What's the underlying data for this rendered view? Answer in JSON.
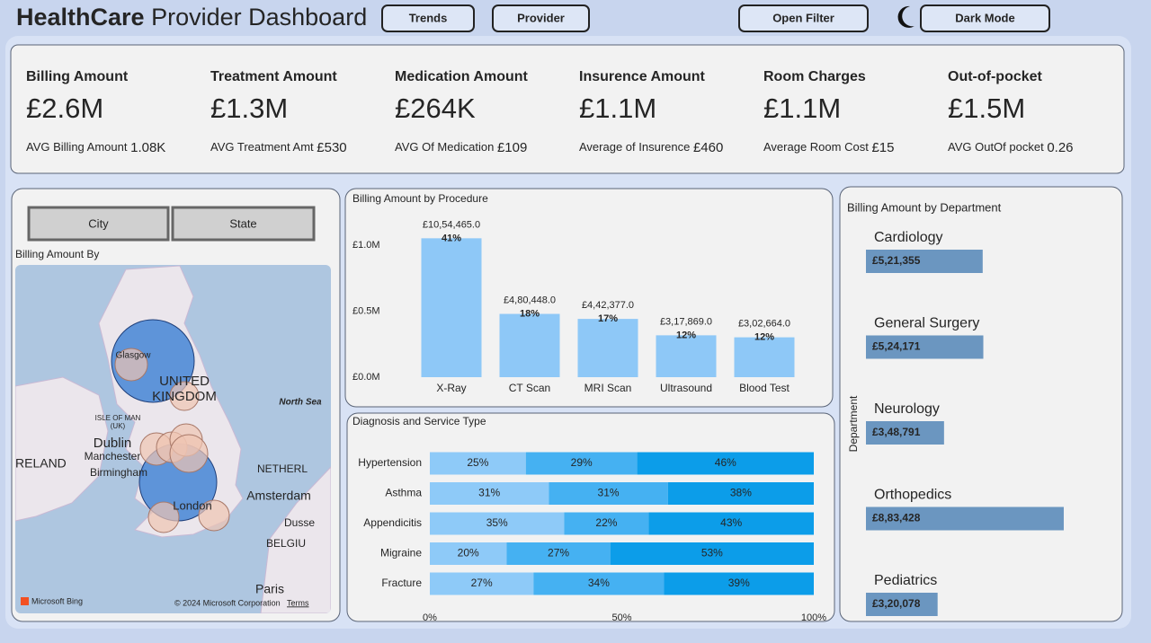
{
  "header": {
    "title_bold": "HealthCare",
    "title_rest": "Provider Dashboard",
    "buttons": [
      "Trends",
      "Provider",
      "Open Filter",
      "Dark Mode"
    ]
  },
  "kpis": [
    {
      "title": "Billing Amount",
      "value": "£2.6M",
      "sub_label": "AVG Billing Amount",
      "sub_value": "1.08K"
    },
    {
      "title": "Treatment Amount",
      "value": "£1.3M",
      "sub_label": "AVG Treatment Amt",
      "sub_value": "£530"
    },
    {
      "title": "Medication Amount",
      "value": "£264K",
      "sub_label": "AVG Of Medication",
      "sub_value": "£109"
    },
    {
      "title": "Insurence Amount",
      "value": "£1.1M",
      "sub_label": "Average of Insurence",
      "sub_value": "£460"
    },
    {
      "title": "Room Charges",
      "value": "£1.1M",
      "sub_label": "Average Room Cost",
      "sub_value": "£15"
    },
    {
      "title": "Out-of-pocket",
      "value": "£1.5M",
      "sub_label": "AVG OutOf pocket",
      "sub_value": "0.26"
    }
  ],
  "map": {
    "buttons": [
      "City",
      "State"
    ],
    "title": "Billing Amount By",
    "labels": [
      "Glasgow",
      "UNITED",
      "KINGDOM",
      "North Sea",
      "ISLE OF MAN",
      "(UK)",
      "Dublin",
      "RELAND",
      "Manchester",
      "Birmingham",
      "London",
      "Amsterdam",
      "NETHERL",
      "Dusse",
      "BELGIU",
      "Paris"
    ],
    "credits": [
      "Microsoft Bing",
      "© 2024 Microsoft Corporation",
      "Terms"
    ]
  },
  "chart_data": [
    {
      "type": "bar",
      "title": "Billing Amount by Procedure",
      "categories": [
        "X-Ray",
        "CT Scan",
        "MRI Scan",
        "Ultrasound",
        "Blood Test"
      ],
      "values": [
        1054465,
        480448,
        442377,
        317869,
        302664
      ],
      "value_labels": [
        "£10,54,465.0",
        "£4,80,448.0",
        "£4,42,377.0",
        "£3,17,869.0",
        "£3,02,664.0"
      ],
      "shares": [
        41,
        18,
        17,
        12,
        12
      ],
      "share_labels": [
        "41%",
        "18%",
        "17%",
        "12%",
        "12%"
      ],
      "color": "#8ec8f7",
      "ylim": [
        0,
        1200000
      ],
      "yticks": [
        {
          "value": 0,
          "label": "£0.0M"
        },
        {
          "value": 500000,
          "label": "£0.5M"
        },
        {
          "value": 1000000,
          "label": "£1.0M"
        }
      ]
    },
    {
      "type": "stacked-hbar",
      "title": "Diagnosis and Service Type",
      "categories": [
        "Hypertension",
        "Asthma",
        "Appendicitis",
        "Migraine",
        "Fracture"
      ],
      "series": [
        {
          "color": "#8ecaf8",
          "values": [
            25,
            31,
            35,
            20,
            27
          ],
          "value_labels": [
            "25%",
            "31%",
            "35%",
            "20%",
            "27%"
          ]
        },
        {
          "color": "#45b1f2",
          "values": [
            29,
            31,
            22,
            27,
            34
          ],
          "value_labels": [
            "29%",
            "31%",
            "22%",
            "27%",
            "34%"
          ]
        },
        {
          "color": "#0c9de9",
          "values": [
            46,
            38,
            43,
            53,
            39
          ],
          "value_labels": [
            "46%",
            "38%",
            "43%",
            "53%",
            "39%"
          ]
        }
      ],
      "xlim": [
        0,
        100
      ],
      "xticks": [
        {
          "value": 0,
          "label": "0%"
        },
        {
          "value": 50,
          "label": "50%"
        },
        {
          "value": 100,
          "label": "100%"
        }
      ]
    },
    {
      "type": "hbar",
      "title": "Billing Amount by Department",
      "y_label": "Department",
      "categories": [
        "Cardiology",
        "General Surgery",
        "Neurology",
        "Orthopedics",
        "Pediatrics"
      ],
      "values": [
        521355,
        524171,
        348791,
        883428,
        320078
      ],
      "value_labels": [
        "£5,21,355",
        "£5,24,171",
        "£3,48,791",
        "£8,83,428",
        "£3,20,078"
      ],
      "color": "#6b96c0",
      "xlim": [
        0,
        1000000
      ]
    }
  ]
}
